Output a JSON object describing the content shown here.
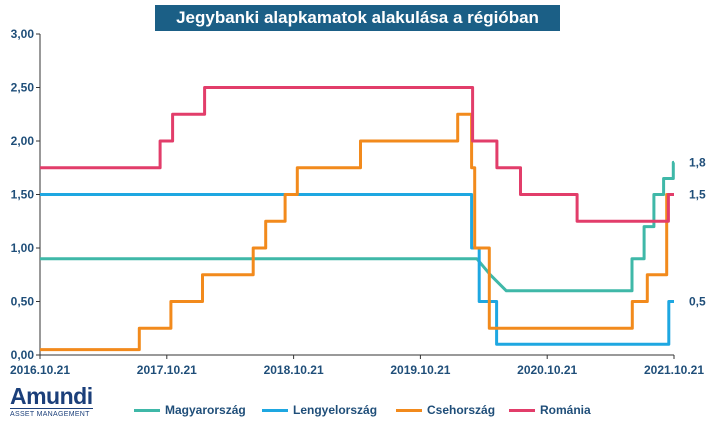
{
  "title": "Jegybanki alapkamatok alakulása a régióban",
  "logo": {
    "name": "Amundi",
    "subtitle": "ASSET MANAGEMENT"
  },
  "chart_data": {
    "type": "line",
    "title": "Jegybanki alapkamatok alakulása a régióban",
    "xlabel": "",
    "ylabel": "",
    "x_tick_labels": [
      "2016.10.21",
      "2017.10.21",
      "2018.10.21",
      "2019.10.21",
      "2020.10.21",
      "2021.10.21"
    ],
    "y_tick_labels": [
      "0,00",
      "0,50",
      "1,00",
      "1,50",
      "2,00",
      "2,50",
      "3,00"
    ],
    "xlim": [
      "2016-10-21",
      "2021-10-21"
    ],
    "ylim": [
      0,
      3
    ],
    "grid": false,
    "legend": "bottom",
    "series": [
      {
        "name": "Magyarország",
        "color": "#3fb8a8",
        "end_label": "1,8",
        "points": [
          [
            "2016-10-21",
            0.9
          ],
          [
            "2020-04-01",
            0.9
          ],
          [
            "2020-05-10",
            0.75
          ],
          [
            "2020-06-25",
            0.6
          ],
          [
            "2021-06-22",
            0.6
          ],
          [
            "2021-06-22",
            0.9
          ],
          [
            "2021-07-27",
            0.9
          ],
          [
            "2021-07-27",
            1.2
          ],
          [
            "2021-08-24",
            1.2
          ],
          [
            "2021-08-24",
            1.5
          ],
          [
            "2021-09-21",
            1.5
          ],
          [
            "2021-09-21",
            1.65
          ],
          [
            "2021-10-19",
            1.65
          ],
          [
            "2021-10-19",
            1.8
          ],
          [
            "2021-10-21",
            1.8
          ]
        ]
      },
      {
        "name": "Lengyelország",
        "color": "#1ea7e1",
        "end_label": "0,5",
        "points": [
          [
            "2016-10-21",
            1.5
          ],
          [
            "2020-03-17",
            1.5
          ],
          [
            "2020-03-17",
            1.0
          ],
          [
            "2020-04-08",
            1.0
          ],
          [
            "2020-04-08",
            0.5
          ],
          [
            "2020-05-28",
            0.5
          ],
          [
            "2020-05-28",
            0.1
          ],
          [
            "2021-10-06",
            0.1
          ],
          [
            "2021-10-06",
            0.5
          ],
          [
            "2021-10-21",
            0.5
          ]
        ]
      },
      {
        "name": "Csehország",
        "color": "#f28a1c",
        "end_label": "",
        "points": [
          [
            "2016-10-21",
            0.05
          ],
          [
            "2017-08-03",
            0.05
          ],
          [
            "2017-08-03",
            0.25
          ],
          [
            "2017-11-02",
            0.25
          ],
          [
            "2017-11-02",
            0.5
          ],
          [
            "2018-02-01",
            0.5
          ],
          [
            "2018-02-01",
            0.75
          ],
          [
            "2018-06-27",
            0.75
          ],
          [
            "2018-06-27",
            1.0
          ],
          [
            "2018-08-02",
            1.0
          ],
          [
            "2018-08-02",
            1.25
          ],
          [
            "2018-09-27",
            1.25
          ],
          [
            "2018-09-27",
            1.5
          ],
          [
            "2018-11-01",
            1.5
          ],
          [
            "2018-11-01",
            1.75
          ],
          [
            "2019-05-02",
            1.75
          ],
          [
            "2019-05-02",
            2.0
          ],
          [
            "2020-02-06",
            2.0
          ],
          [
            "2020-02-06",
            2.25
          ],
          [
            "2020-03-17",
            2.25
          ],
          [
            "2020-03-17",
            1.75
          ],
          [
            "2020-03-26",
            1.75
          ],
          [
            "2020-03-26",
            1.0
          ],
          [
            "2020-05-07",
            1.0
          ],
          [
            "2020-05-07",
            0.25
          ],
          [
            "2021-06-23",
            0.25
          ],
          [
            "2021-06-23",
            0.5
          ],
          [
            "2021-08-05",
            0.5
          ],
          [
            "2021-08-05",
            0.75
          ],
          [
            "2021-09-30",
            0.75
          ],
          [
            "2021-09-30",
            1.5
          ],
          [
            "2021-10-21",
            1.5
          ]
        ]
      },
      {
        "name": "Románia",
        "color": "#e23d6a",
        "end_label": "1,5",
        "points": [
          [
            "2016-10-21",
            1.75
          ],
          [
            "2017-10-02",
            1.75
          ],
          [
            "2017-10-02",
            2.0
          ],
          [
            "2017-11-07",
            2.0
          ],
          [
            "2017-11-07",
            2.25
          ],
          [
            "2018-02-07",
            2.25
          ],
          [
            "2018-02-07",
            2.5
          ],
          [
            "2020-03-20",
            2.5
          ],
          [
            "2020-03-20",
            2.0
          ],
          [
            "2020-05-29",
            2.0
          ],
          [
            "2020-05-29",
            1.75
          ],
          [
            "2020-08-05",
            1.75
          ],
          [
            "2020-08-05",
            1.5
          ],
          [
            "2021-01-15",
            1.5
          ],
          [
            "2021-01-15",
            1.25
          ],
          [
            "2021-10-05",
            1.25
          ],
          [
            "2021-10-05",
            1.5
          ],
          [
            "2021-10-21",
            1.5
          ]
        ]
      }
    ]
  }
}
